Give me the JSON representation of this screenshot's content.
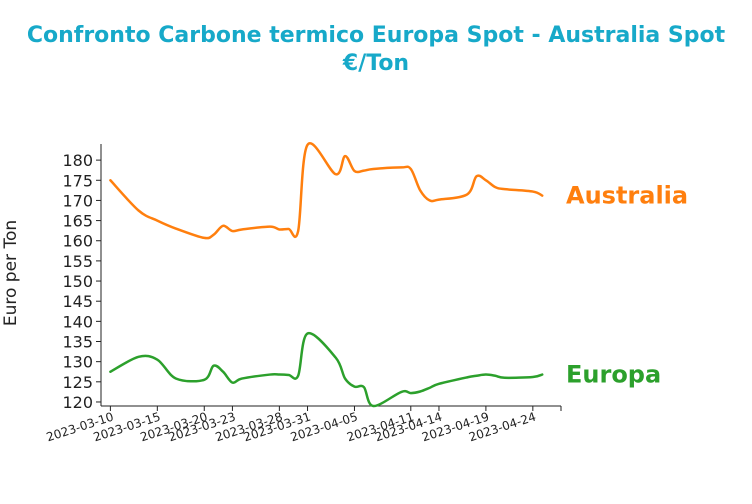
{
  "title_lines": [
    "Confronto Carbone termico Europa Spot - Australia Spot",
    "€/Ton"
  ],
  "colors": {
    "title": "#17a9c9",
    "australia": "#ff7f0e",
    "europa": "#2ca02c",
    "axis": "#222222"
  },
  "chart_data": {
    "type": "line",
    "title": "Confronto Carbone termico Europa Spot - Australia Spot €/Ton",
    "ylabel": "Euro per Ton",
    "xlabel": "",
    "ylim": [
      119,
      184
    ],
    "yticks": [
      120,
      125,
      130,
      135,
      140,
      145,
      150,
      155,
      160,
      165,
      170,
      175,
      180
    ],
    "xtick_labels": [
      "2023-03-10",
      "2023-03-15",
      "2023-03-20",
      "2023-03-23",
      "2023-03-28",
      "2023-03-31",
      "2023-04-05",
      "2023-04-11",
      "2023-04-14",
      "2023-04-19",
      "2023-04-24"
    ],
    "grid": false,
    "legend": "inline labels at right end of lines",
    "series": [
      {
        "name": "Australia",
        "x": [
          "2023-03-10",
          "2023-03-13",
          "2023-03-15",
          "2023-03-17",
          "2023-03-20",
          "2023-03-21",
          "2023-03-22",
          "2023-03-23",
          "2023-03-24",
          "2023-03-27",
          "2023-03-28",
          "2023-03-29",
          "2023-03-30",
          "2023-03-31",
          "2023-04-03",
          "2023-04-04",
          "2023-04-05",
          "2023-04-06",
          "2023-04-07",
          "2023-04-10",
          "2023-04-11",
          "2023-04-12",
          "2023-04-13",
          "2023-04-14",
          "2023-04-17",
          "2023-04-18",
          "2023-04-19",
          "2023-04-20",
          "2023-04-21",
          "2023-04-24",
          "2023-04-25"
        ],
        "y": [
          175,
          167.5,
          165,
          163,
          160.7,
          161.5,
          163.7,
          162.4,
          162.8,
          163.5,
          162.8,
          162.9,
          162.4,
          183.8,
          176.5,
          181,
          177.3,
          177.4,
          177.8,
          178.2,
          177.8,
          172.5,
          170.0,
          170.2,
          171.5,
          176.0,
          175.0,
          173.3,
          172.8,
          172.2,
          171.2
        ]
      },
      {
        "name": "Europa",
        "x": [
          "2023-03-10",
          "2023-03-13",
          "2023-03-15",
          "2023-03-17",
          "2023-03-20",
          "2023-03-21",
          "2023-03-22",
          "2023-03-23",
          "2023-03-24",
          "2023-03-27",
          "2023-03-28",
          "2023-03-29",
          "2023-03-30",
          "2023-03-31",
          "2023-04-03",
          "2023-04-04",
          "2023-04-05",
          "2023-04-06",
          "2023-04-07",
          "2023-04-10",
          "2023-04-11",
          "2023-04-12",
          "2023-04-13",
          "2023-04-14",
          "2023-04-17",
          "2023-04-18",
          "2023-04-19",
          "2023-04-20",
          "2023-04-21",
          "2023-04-24",
          "2023-04-25"
        ],
        "y": [
          127.5,
          131.2,
          130.5,
          125.8,
          125.5,
          129.0,
          127.5,
          124.8,
          125.8,
          126.8,
          126.8,
          126.7,
          126.5,
          137.0,
          131.0,
          125.8,
          123.8,
          123.7,
          119.0,
          122.5,
          122.2,
          122.6,
          123.5,
          124.5,
          126.1,
          126.5,
          126.8,
          126.5,
          126.0,
          126.2,
          126.8
        ]
      }
    ]
  }
}
